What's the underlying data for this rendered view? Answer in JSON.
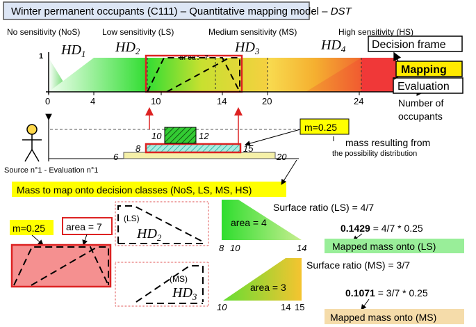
{
  "title": {
    "main": "Winter permanent occupants (C111) – Quantitative mapping model – ",
    "method": "DST"
  },
  "classes": [
    {
      "label": "No sensitivity (NoS)",
      "hd_base": "HD",
      "hd_sub": "1"
    },
    {
      "label": "Low sensitivity (LS)",
      "hd_base": "HD",
      "hd_sub": "2"
    },
    {
      "label": "Medium sensitivity (MS)",
      "hd_base": "HD",
      "hd_sub": "3"
    },
    {
      "label": "High sensitivity (HS)",
      "hd_base": "HD",
      "hd_sub": "4"
    }
  ],
  "axis": {
    "y_one": "1",
    "ticks": [
      "0",
      "4",
      "10",
      "14",
      "20",
      "24"
    ],
    "label_line1": "Number of",
    "label_line2": "occupants"
  },
  "area_note": "area: 7",
  "flow_boxes": {
    "decision": "Decision frame",
    "mapping": "Mapping",
    "evaluation": "Evaluation"
  },
  "possibility": {
    "inner_left": "10",
    "inner_right": "12",
    "mid_left": "8",
    "mid_right": "15",
    "outer_left": "6",
    "outer_right": "20"
  },
  "mass_box": "m=0.25",
  "mass_note_line1": "mass resulting from",
  "mass_note_line2": "the possibility distribution",
  "source": "Source n°1 - Evaluation n°1",
  "map_banner": "Mass to map onto decision classes (NoS, LS, MS, HS)",
  "bottom": {
    "mass": "m=0.25",
    "area_total": "area = 7",
    "ls_tag": "(LS)",
    "ms_tag": "(MS)",
    "hd_base": "HD",
    "hd2_sub": "2",
    "hd3_sub": "3",
    "ls_area": "area = 4",
    "ms_area": "area = 3",
    "ls_ticks": [
      "8",
      "10",
      "14"
    ],
    "ms_ticks": [
      "10",
      "14",
      "15"
    ],
    "ratio_ls": "Surface ratio (LS) = 4/7",
    "ratio_ms": "Surface ratio (MS) = 3/7",
    "value_ls": "0.1429",
    "formula_ls": " = 4/7 * 0.25",
    "value_ms": "0.1071",
    "formula_ms": " = 3/7 * 0.25",
    "mapped_ls": "Mapped mass onto (LS)",
    "mapped_ms": "Mapped mass onto (MS)"
  },
  "colors": {
    "nos": "#40d040",
    "ls": "#3ee03e",
    "ms": "#f4c430",
    "hs": "#f03030",
    "highlight_yellow": "#ffff00",
    "mapping_yellow": "#ffea00",
    "mapped_ls_bg": "#99ee99",
    "mapped_ms_bg": "#f5dcaa",
    "mass_red": "#f59090",
    "title_bg": "#dde6f5"
  }
}
